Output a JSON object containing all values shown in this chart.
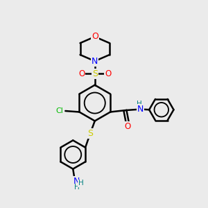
{
  "bg_color": "#ebebeb",
  "bond_color": "#000000",
  "bond_width": 1.8,
  "atom_colors": {
    "O": "#ff0000",
    "N": "#0000ff",
    "S": "#cccc00",
    "Cl": "#00bb00",
    "H": "#008080"
  },
  "figsize": [
    3.0,
    3.0
  ],
  "dpi": 100
}
